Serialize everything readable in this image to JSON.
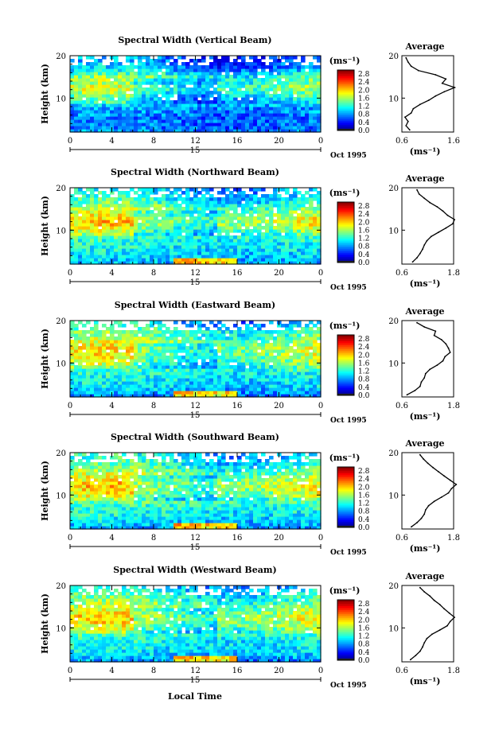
{
  "chart_data": {
    "type": "heatmap",
    "xlabel": "Local Time",
    "x_ticks": [
      "0",
      "4",
      "8",
      "12",
      "16",
      "20",
      "0"
    ],
    "xlim": [
      0,
      24
    ],
    "ylabel": "Height (km)",
    "y_ticks": [
      "10",
      "20"
    ],
    "ylim": [
      2,
      20
    ],
    "date_day": "15",
    "date_label": "Oct 1995",
    "colorbar": {
      "unit": "(ms⁻¹)",
      "ticks": [
        "2.8",
        "2.4",
        "2.0",
        "1.6",
        "1.2",
        "0.8",
        "0.4",
        "0.0"
      ],
      "range": [
        0.0,
        3.0
      ]
    },
    "average_title": "Average",
    "average_unit": "(ms⁻¹)",
    "average_heights": [
      2.5,
      3.5,
      4.5,
      5.5,
      6.5,
      7.5,
      8.5,
      9.5,
      10.5,
      11.5,
      12.5,
      13.5,
      14.5,
      15.5,
      16.5,
      17.5,
      18.5,
      19.5
    ],
    "panels": [
      {
        "title": "Spectral Width (Vertical Beam)",
        "avg_xlim": [
          0.6,
          1.6
        ],
        "avg_ticks": [
          "0.6",
          "1.6"
        ],
        "average": [
          0.75,
          0.68,
          0.72,
          0.66,
          0.78,
          0.82,
          0.95,
          1.12,
          1.25,
          1.42,
          1.62,
          1.38,
          1.45,
          1.25,
          0.92,
          0.78,
          0.72,
          0.68
        ]
      },
      {
        "title": "Spectral Width (Northward Beam)",
        "avg_xlim": [
          0.6,
          1.8
        ],
        "avg_ticks": [
          "0.6",
          "1.8"
        ],
        "average": [
          0.85,
          0.95,
          1.02,
          1.08,
          1.12,
          1.18,
          1.28,
          1.45,
          1.62,
          1.78,
          1.82,
          1.66,
          1.55,
          1.42,
          1.25,
          1.12,
          1.0,
          0.95
        ]
      },
      {
        "title": "Spectral Width (Eastward Beam)",
        "avg_xlim": [
          0.6,
          1.8
        ],
        "avg_ticks": [
          "0.6",
          "1.8"
        ],
        "average": [
          0.72,
          0.9,
          1.02,
          1.05,
          1.12,
          1.15,
          1.25,
          1.42,
          1.55,
          1.6,
          1.72,
          1.68,
          1.62,
          1.52,
          1.35,
          1.38,
          1.12,
          0.95
        ]
      },
      {
        "title": "Spectral Width (Southward Beam)",
        "avg_xlim": [
          0.6,
          1.8
        ],
        "avg_ticks": [
          "0.6",
          "1.8"
        ],
        "average": [
          0.82,
          0.95,
          1.05,
          1.12,
          1.15,
          1.22,
          1.35,
          1.52,
          1.68,
          1.75,
          1.86,
          1.72,
          1.58,
          1.45,
          1.32,
          1.2,
          1.1,
          1.02
        ]
      },
      {
        "title": "Spectral Width (Westward Beam)",
        "avg_xlim": [
          0.6,
          1.8
        ],
        "avg_ticks": [
          "0.6",
          "1.8"
        ],
        "average": [
          0.8,
          0.92,
          1.02,
          1.08,
          1.12,
          1.18,
          1.3,
          1.48,
          1.65,
          1.72,
          1.82,
          1.7,
          1.58,
          1.48,
          1.35,
          1.25,
          1.12,
          1.02
        ]
      }
    ]
  }
}
